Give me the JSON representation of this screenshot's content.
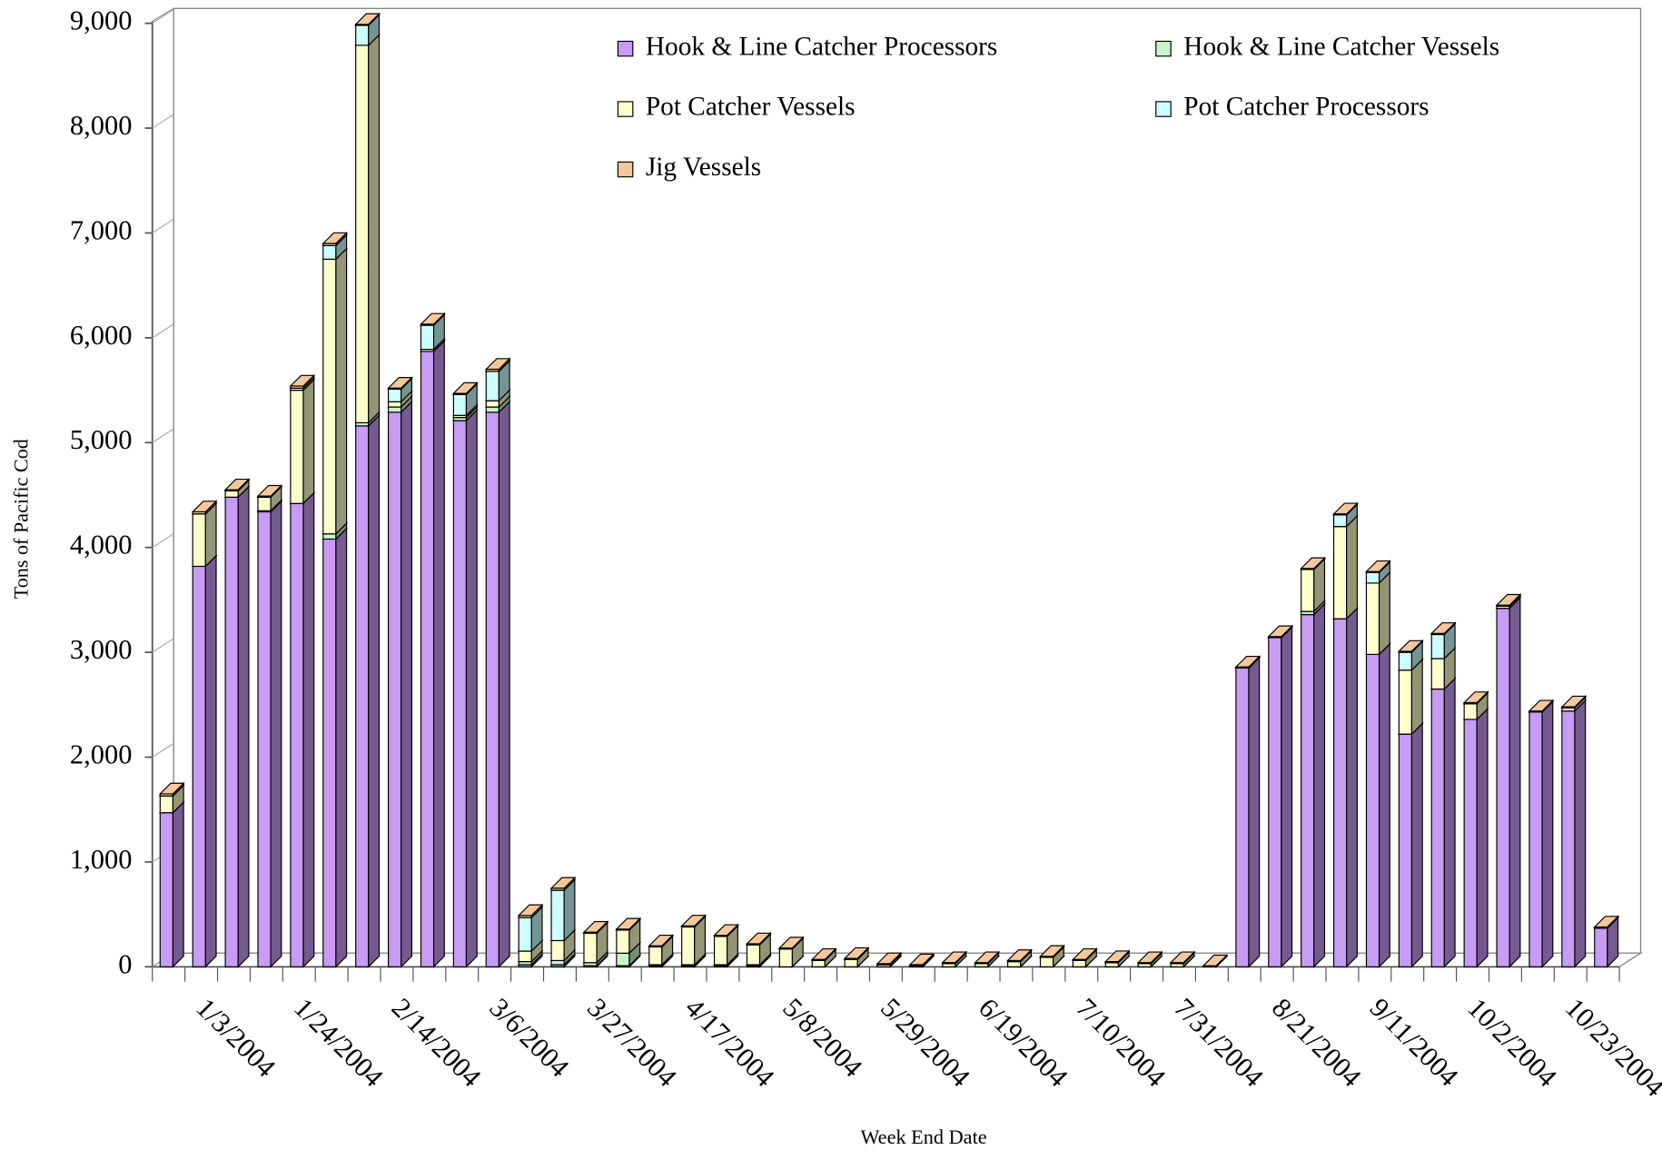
{
  "chart_data": {
    "type": "stacked_bar_3d",
    "x_label": "Week End Date",
    "y_label": "Tons of Pacific Cod",
    "categories": [
      null,
      "1/3/2004",
      null,
      null,
      "1/24/2004",
      null,
      null,
      "2/14/2004",
      null,
      null,
      "3/6/2004",
      null,
      null,
      "3/27/2004",
      null,
      null,
      "4/17/2004",
      null,
      null,
      "5/8/2004",
      null,
      null,
      "5/29/2004",
      null,
      null,
      "6/19/2004",
      null,
      null,
      "7/10/2004",
      null,
      null,
      "7/31/2004",
      null,
      null,
      "8/21/2004",
      null,
      null,
      "9/11/2004",
      null,
      null,
      "10/2/2004",
      null,
      null,
      "10/23/2004",
      null
    ],
    "ylim": [
      0,
      9000
    ],
    "yticks": [
      0,
      {
        "value": 1000,
        "label": "1,000"
      },
      {
        "value": 2000,
        "label": "2,000"
      },
      {
        "value": 3000,
        "label": "3,000"
      },
      {
        "value": 4000,
        "label": "4,000"
      },
      {
        "value": 5000,
        "label": "5,000"
      },
      {
        "value": 6000,
        "label": "6,000"
      },
      {
        "value": 7000,
        "label": "7,000"
      },
      {
        "value": 8000,
        "label": "8,000"
      },
      {
        "value": 9000,
        "label": "9,000"
      }
    ],
    "legend": "upper right",
    "series": [
      {
        "name": "Hook & Line Catcher Processors",
        "color": "#c89bf5",
        "values": [
          1470,
          3820,
          4480,
          4340,
          4420,
          4080,
          5160,
          5290,
          5870,
          5210,
          5290,
          20,
          20,
          10,
          10,
          10,
          10,
          10,
          10,
          0,
          0,
          0,
          0,
          0,
          0,
          0,
          0,
          0,
          0,
          0,
          0,
          0,
          0,
          2850,
          3140,
          3360,
          3320,
          2980,
          2220,
          2650,
          2360,
          3420,
          2430,
          2440,
          370
        ]
      },
      {
        "name": "Hook & Line Catcher Vessels",
        "color": "#c8f5c8",
        "values": [
          0,
          0,
          0,
          10,
          0,
          50,
          30,
          50,
          0,
          30,
          50,
          30,
          40,
          30,
          120,
          10,
          10,
          10,
          10,
          0,
          0,
          0,
          0,
          0,
          0,
          0,
          0,
          0,
          0,
          0,
          0,
          0,
          0,
          0,
          0,
          30,
          0,
          0,
          0,
          0,
          0,
          0,
          0,
          0,
          0
        ]
      },
      {
        "name": "Pot Catcher Vessels",
        "color": "#ffffcc",
        "values": [
          160,
          500,
          60,
          130,
          1080,
          2620,
          3600,
          50,
          20,
          20,
          60,
          100,
          190,
          280,
          220,
          170,
          360,
          270,
          190,
          170,
          60,
          70,
          20,
          10,
          30,
          30,
          50,
          90,
          60,
          40,
          30,
          30,
          0,
          0,
          0,
          400,
          880,
          680,
          610,
          290,
          150,
          20,
          0,
          30,
          0
        ]
      },
      {
        "name": "Pot Catcher Processors",
        "color": "#ccffff",
        "values": [
          0,
          0,
          0,
          0,
          20,
          130,
          190,
          120,
          230,
          200,
          280,
          320,
          480,
          0,
          0,
          0,
          0,
          0,
          0,
          0,
          0,
          0,
          0,
          0,
          0,
          0,
          0,
          0,
          0,
          0,
          0,
          0,
          0,
          0,
          0,
          0,
          110,
          100,
          170,
          230,
          0,
          0,
          0,
          0,
          0
        ]
      },
      {
        "name": "Jig Vessels",
        "color": "#f5c89b",
        "values": [
          20,
          20,
          10,
          10,
          20,
          20,
          10,
          10,
          10,
          10,
          20,
          20,
          20,
          10,
          10,
          10,
          10,
          10,
          10,
          10,
          10,
          10,
          10,
          10,
          10,
          10,
          10,
          10,
          10,
          10,
          10,
          10,
          10,
          10,
          10,
          10,
          10,
          10,
          10,
          10,
          10,
          10,
          10,
          10,
          10
        ]
      }
    ]
  }
}
